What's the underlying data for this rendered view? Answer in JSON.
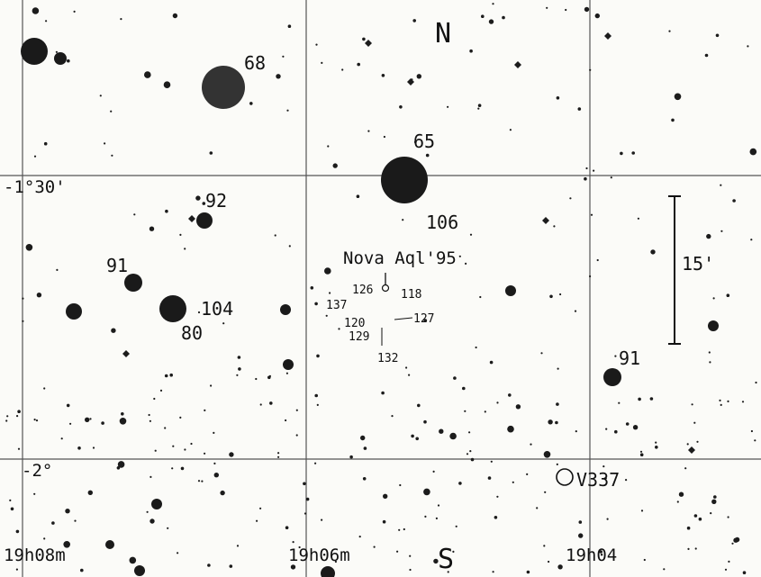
{
  "compass": {
    "north": "N",
    "south": "S"
  },
  "dec_labels": {
    "dec1": "-1°30'",
    "dec2": "-2°"
  },
  "ra_labels": {
    "ra1": "19h08m",
    "ra2": "19h06m",
    "ra3": "19h04"
  },
  "scale_bar": {
    "label": "15'"
  },
  "nova": {
    "label": "Nova Aql'95"
  },
  "star_labels": [
    {
      "id": "s68",
      "text": "68"
    },
    {
      "id": "s65",
      "text": "65"
    },
    {
      "id": "s92",
      "text": "92"
    },
    {
      "id": "s106",
      "text": "106"
    },
    {
      "id": "s91a",
      "text": "91"
    },
    {
      "id": "s104",
      "text": "104"
    },
    {
      "id": "s80",
      "text": "80"
    },
    {
      "id": "s91b",
      "text": "91"
    },
    {
      "id": "v337",
      "text": "V337"
    }
  ],
  "comparison_labels": [
    {
      "id": "c126",
      "text": "126"
    },
    {
      "id": "c118",
      "text": "118"
    },
    {
      "id": "c137",
      "text": "137"
    },
    {
      "id": "c120",
      "text": "120"
    },
    {
      "id": "c127",
      "text": "127"
    },
    {
      "id": "c129",
      "text": "129"
    },
    {
      "id": "c132",
      "text": "132"
    }
  ],
  "colors": {
    "ink": "#111111",
    "grid": "#555555",
    "paper": "#fbfbf8"
  }
}
